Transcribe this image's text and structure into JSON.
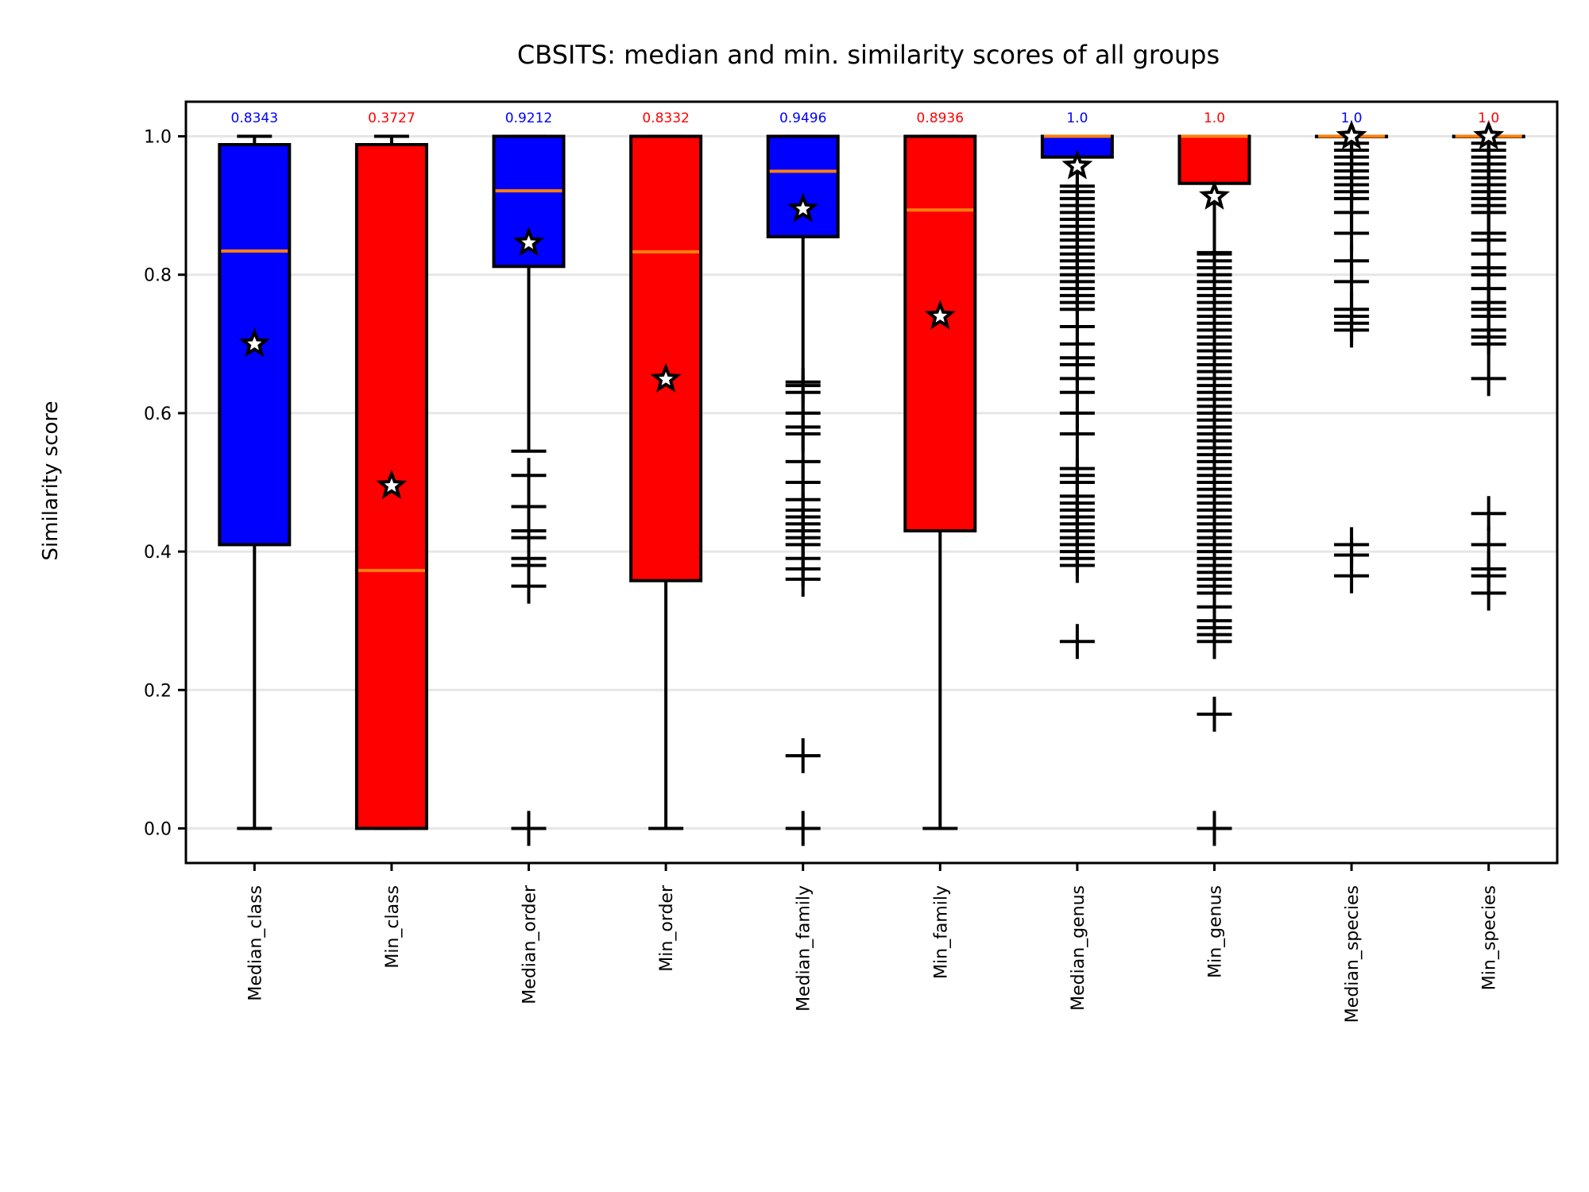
{
  "chart_data": {
    "type": "box",
    "title": "CBSITS: median and min. similarity scores of all groups",
    "xlabel": "",
    "ylabel": "Similarity score",
    "ylim": [
      -0.05,
      1.05
    ],
    "yticks": [
      "0.0",
      "0.2",
      "0.4",
      "0.6",
      "0.8",
      "1.0"
    ],
    "grid": "horizontal",
    "colors": {
      "median_box": "#0000ff",
      "min_box": "#ff0000",
      "median_line": "#ff7f0e",
      "mean_marker": "#ffffff"
    },
    "categories": [
      "Median_class",
      "Min_class",
      "Median_order",
      "Min_order",
      "Median_family",
      "Min_family",
      "Median_genus",
      "Min_genus",
      "Median_species",
      "Min_species"
    ],
    "boxes": [
      {
        "name": "Median_class",
        "color": "#0000ff",
        "q1": 0.41,
        "median": 0.8343,
        "q3": 0.988,
        "whisker_low": 0.0,
        "whisker_high": 1.0,
        "mean": 0.7,
        "median_label": "0.8343",
        "outliers": []
      },
      {
        "name": "Min_class",
        "color": "#ff0000",
        "q1": 0.0,
        "median": 0.3727,
        "q3": 0.988,
        "whisker_low": 0.0,
        "whisker_high": 1.0,
        "mean": 0.495,
        "median_label": "0.3727",
        "outliers": []
      },
      {
        "name": "Median_order",
        "color": "#0000ff",
        "q1": 0.812,
        "median": 0.9212,
        "q3": 1.0,
        "whisker_low": 0.545,
        "whisker_high": 1.0,
        "mean": 0.846,
        "median_label": "0.9212",
        "outliers": [
          0.51,
          0.465,
          0.43,
          0.42,
          0.39,
          0.38,
          0.35,
          0.0
        ]
      },
      {
        "name": "Min_order",
        "color": "#ff0000",
        "q1": 0.358,
        "median": 0.8332,
        "q3": 1.0,
        "whisker_low": 0.0,
        "whisker_high": 1.0,
        "mean": 0.649,
        "median_label": "0.8332",
        "outliers": []
      },
      {
        "name": "Median_family",
        "color": "#0000ff",
        "q1": 0.855,
        "median": 0.9496,
        "q3": 1.0,
        "whisker_low": 0.645,
        "whisker_high": 1.0,
        "mean": 0.895,
        "median_label": "0.9496",
        "outliers": [
          0.64,
          0.63,
          0.6,
          0.58,
          0.57,
          0.53,
          0.5,
          0.475,
          0.46,
          0.45,
          0.44,
          0.43,
          0.42,
          0.41,
          0.39,
          0.375,
          0.36,
          0.105,
          0.0
        ]
      },
      {
        "name": "Min_family",
        "color": "#ff0000",
        "q1": 0.43,
        "median": 0.8936,
        "q3": 1.0,
        "whisker_low": 0.0,
        "whisker_high": 1.0,
        "mean": 0.74,
        "median_label": "0.8936",
        "outliers": []
      },
      {
        "name": "Median_genus",
        "color": "#0000ff",
        "q1": 0.97,
        "median": 1.0,
        "q3": 1.0,
        "whisker_low": 0.928,
        "whisker_high": 1.0,
        "mean": 0.957,
        "median_label": "1.0",
        "outliers": [
          0.92,
          0.91,
          0.9,
          0.89,
          0.88,
          0.87,
          0.86,
          0.85,
          0.84,
          0.83,
          0.82,
          0.81,
          0.8,
          0.79,
          0.78,
          0.77,
          0.76,
          0.75,
          0.725,
          0.7,
          0.68,
          0.67,
          0.65,
          0.63,
          0.6,
          0.57,
          0.52,
          0.51,
          0.5,
          0.48,
          0.47,
          0.46,
          0.45,
          0.44,
          0.43,
          0.42,
          0.41,
          0.4,
          0.39,
          0.38,
          0.27
        ]
      },
      {
        "name": "Min_genus",
        "color": "#ff0000",
        "q1": 0.932,
        "median": 1.0,
        "q3": 1.0,
        "whisker_low": 0.832,
        "whisker_high": 1.0,
        "mean": 0.913,
        "median_label": "1.0",
        "outliers": [
          0.83,
          0.82,
          0.81,
          0.8,
          0.79,
          0.78,
          0.77,
          0.76,
          0.75,
          0.74,
          0.73,
          0.72,
          0.71,
          0.7,
          0.69,
          0.68,
          0.67,
          0.66,
          0.65,
          0.64,
          0.63,
          0.62,
          0.61,
          0.6,
          0.59,
          0.58,
          0.57,
          0.56,
          0.55,
          0.54,
          0.53,
          0.52,
          0.51,
          0.5,
          0.49,
          0.48,
          0.47,
          0.46,
          0.45,
          0.44,
          0.43,
          0.42,
          0.41,
          0.4,
          0.39,
          0.38,
          0.37,
          0.36,
          0.35,
          0.34,
          0.32,
          0.3,
          0.29,
          0.28,
          0.27,
          0.165,
          0.0
        ]
      },
      {
        "name": "Median_species",
        "color": "#0000ff",
        "q1": 1.0,
        "median": 1.0,
        "q3": 1.0,
        "whisker_low": 1.0,
        "whisker_high": 1.0,
        "mean": 1.0,
        "median_label": "1.0",
        "outliers": [
          0.99,
          0.98,
          0.97,
          0.96,
          0.95,
          0.94,
          0.93,
          0.92,
          0.91,
          0.89,
          0.86,
          0.82,
          0.79,
          0.75,
          0.74,
          0.73,
          0.72,
          0.41,
          0.395,
          0.365
        ]
      },
      {
        "name": "Min_species",
        "color": "#ff0000",
        "q1": 1.0,
        "median": 1.0,
        "q3": 1.0,
        "whisker_low": 1.0,
        "whisker_high": 1.0,
        "mean": 1.0,
        "median_label": "1.0",
        "outliers": [
          0.99,
          0.98,
          0.97,
          0.96,
          0.95,
          0.94,
          0.93,
          0.92,
          0.91,
          0.9,
          0.89,
          0.86,
          0.85,
          0.83,
          0.81,
          0.8,
          0.78,
          0.76,
          0.75,
          0.74,
          0.72,
          0.71,
          0.7,
          0.65,
          0.455,
          0.41,
          0.375,
          0.365,
          0.34
        ]
      }
    ]
  }
}
